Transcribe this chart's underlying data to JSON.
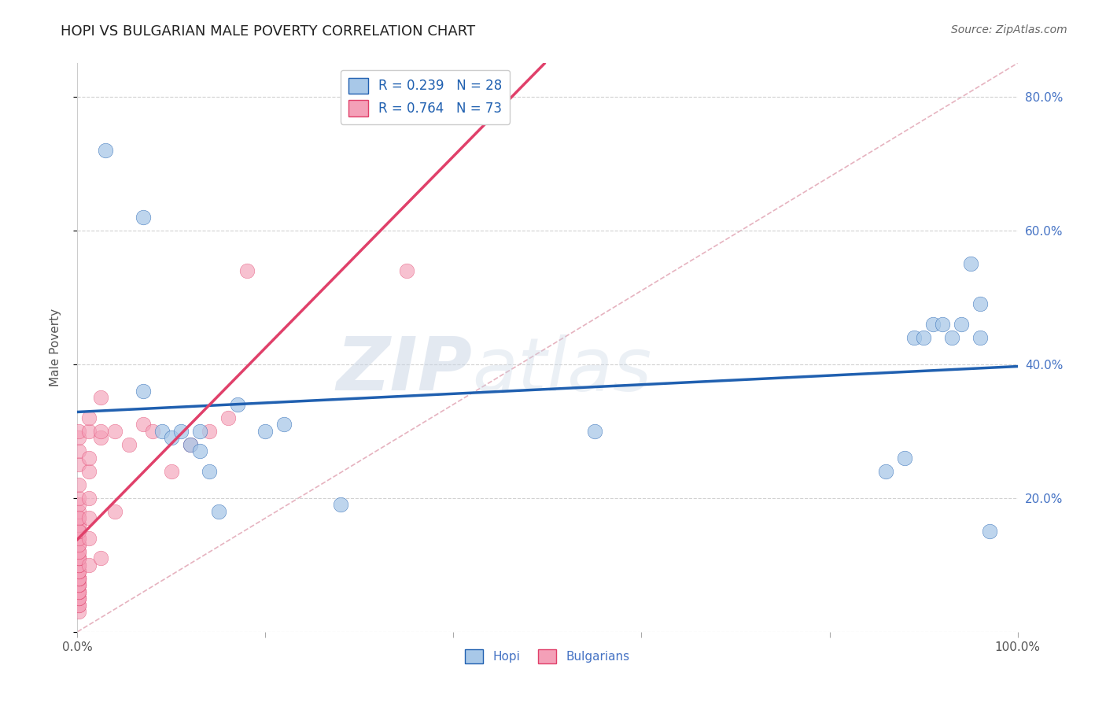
{
  "title": "HOPI VS BULGARIAN MALE POVERTY CORRELATION CHART",
  "source": "Source: ZipAtlas.com",
  "ylabel": "Male Poverty",
  "xlim": [
    0.0,
    1.0
  ],
  "ylim": [
    0.0,
    0.85
  ],
  "xticks": [
    0.0,
    0.2,
    0.4,
    0.6,
    0.8,
    1.0
  ],
  "ytick_positions": [
    0.0,
    0.2,
    0.4,
    0.6,
    0.8
  ],
  "yticklabels_right": [
    "",
    "20.0%",
    "40.0%",
    "60.0%",
    "80.0%"
  ],
  "hopi_color": "#a8c8e8",
  "bulgarian_color": "#f4a0b8",
  "hopi_R": 0.239,
  "hopi_N": 28,
  "bulgarian_R": 0.764,
  "bulgarian_N": 73,
  "hopi_trend_color": "#2060b0",
  "bulgarian_trend_color": "#e0406a",
  "diagonal_color": "#e0a0b0",
  "background_color": "#ffffff",
  "grid_color": "#cccccc",
  "hopi_x": [
    0.03,
    0.07,
    0.07,
    0.09,
    0.1,
    0.11,
    0.12,
    0.13,
    0.13,
    0.14,
    0.15,
    0.17,
    0.2,
    0.22,
    0.28,
    0.55,
    0.86,
    0.88,
    0.89,
    0.9,
    0.91,
    0.92,
    0.93,
    0.94,
    0.95,
    0.96,
    0.96,
    0.97
  ],
  "hopi_y": [
    0.72,
    0.62,
    0.36,
    0.3,
    0.29,
    0.3,
    0.28,
    0.3,
    0.27,
    0.24,
    0.18,
    0.34,
    0.3,
    0.31,
    0.19,
    0.3,
    0.24,
    0.26,
    0.44,
    0.44,
    0.46,
    0.46,
    0.44,
    0.46,
    0.55,
    0.49,
    0.44,
    0.15
  ],
  "bulgarian_x": [
    0.001,
    0.001,
    0.001,
    0.001,
    0.001,
    0.001,
    0.001,
    0.001,
    0.001,
    0.001,
    0.001,
    0.001,
    0.001,
    0.001,
    0.001,
    0.001,
    0.001,
    0.001,
    0.001,
    0.001,
    0.001,
    0.001,
    0.001,
    0.001,
    0.001,
    0.001,
    0.001,
    0.001,
    0.001,
    0.001,
    0.001,
    0.001,
    0.001,
    0.001,
    0.001,
    0.001,
    0.001,
    0.001,
    0.001,
    0.001,
    0.001,
    0.001,
    0.001,
    0.001,
    0.001,
    0.001,
    0.001,
    0.001,
    0.001,
    0.001,
    0.012,
    0.012,
    0.012,
    0.012,
    0.012,
    0.012,
    0.012,
    0.012,
    0.025,
    0.025,
    0.025,
    0.025,
    0.04,
    0.04,
    0.055,
    0.07,
    0.08,
    0.1,
    0.12,
    0.14,
    0.16,
    0.18,
    0.35
  ],
  "bulgarian_y": [
    0.03,
    0.04,
    0.04,
    0.05,
    0.05,
    0.05,
    0.06,
    0.06,
    0.06,
    0.06,
    0.07,
    0.07,
    0.07,
    0.07,
    0.08,
    0.08,
    0.08,
    0.08,
    0.08,
    0.09,
    0.09,
    0.09,
    0.1,
    0.1,
    0.1,
    0.11,
    0.11,
    0.11,
    0.11,
    0.12,
    0.13,
    0.14,
    0.15,
    0.16,
    0.12,
    0.13,
    0.14,
    0.15,
    0.16,
    0.17,
    0.18,
    0.19,
    0.2,
    0.22,
    0.25,
    0.27,
    0.29,
    0.3,
    0.15,
    0.17,
    0.1,
    0.14,
    0.17,
    0.2,
    0.24,
    0.26,
    0.3,
    0.32,
    0.11,
    0.29,
    0.3,
    0.35,
    0.18,
    0.3,
    0.28,
    0.31,
    0.3,
    0.24,
    0.28,
    0.3,
    0.32,
    0.54,
    0.54
  ],
  "watermark_zip": "ZIP",
  "watermark_atlas": "atlas",
  "watermark_color": "#d0d8e8",
  "title_fontsize": 13,
  "label_fontsize": 11,
  "tick_fontsize": 11,
  "legend_fontsize": 12,
  "source_fontsize": 10
}
